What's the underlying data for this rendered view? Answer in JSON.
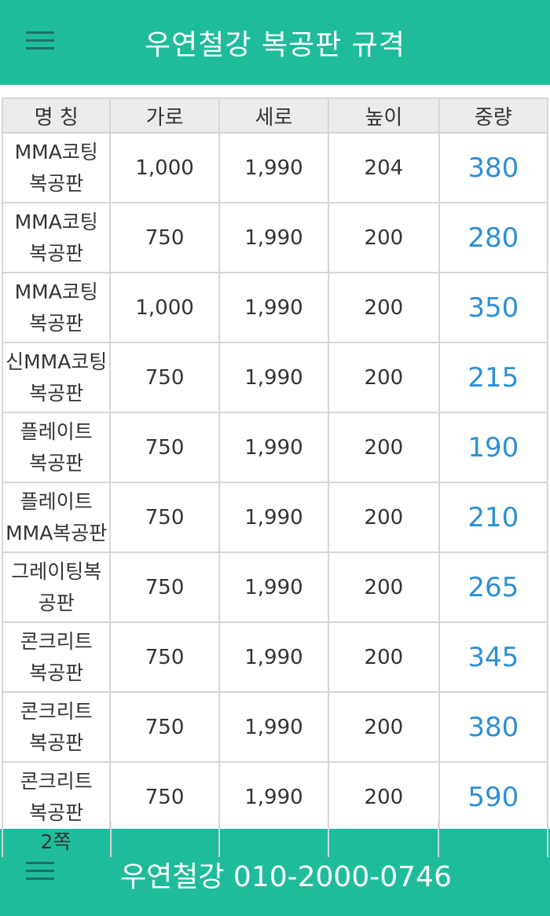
{
  "header": {
    "title": "우연철강 복공판 규격",
    "menu_icon": "hamburger-menu-icon"
  },
  "table": {
    "columns": [
      "명 칭",
      "가로",
      "세로",
      "높이",
      "중량"
    ],
    "rows": [
      {
        "name_line1": "MMA코팅",
        "name_line2": "복공판",
        "width": "1,000",
        "length": "1,990",
        "height": "204",
        "weight": "380"
      },
      {
        "name_line1": "MMA코팅",
        "name_line2": "복공판",
        "width": "750",
        "length": "1,990",
        "height": "200",
        "weight": "280"
      },
      {
        "name_line1": "MMA코팅",
        "name_line2": "복공판",
        "width": "1,000",
        "length": "1,990",
        "height": "200",
        "weight": "350"
      },
      {
        "name_line1": "신MMA코팅",
        "name_line2": "복공판",
        "width": "750",
        "length": "1,990",
        "height": "200",
        "weight": "215"
      },
      {
        "name_line1": "플레이트",
        "name_line2": "복공판",
        "width": "750",
        "length": "1,990",
        "height": "200",
        "weight": "190"
      },
      {
        "name_line1": "플레이트",
        "name_line2": "MMA복공판",
        "width": "750",
        "length": "1,990",
        "height": "200",
        "weight": "210"
      },
      {
        "name_line1": "그레이팅복",
        "name_line2": "공판",
        "width": "750",
        "length": "1,990",
        "height": "200",
        "weight": "265"
      },
      {
        "name_line1": "콘크리트",
        "name_line2": "복공판",
        "width": "750",
        "length": "1,990",
        "height": "200",
        "weight": "345"
      },
      {
        "name_line1": "콘크리트",
        "name_line2": "복공판",
        "width": "750",
        "length": "1,990",
        "height": "200",
        "weight": "380"
      },
      {
        "name_line1": "콘크리트",
        "name_line2": "복공판",
        "width": "750",
        "length": "1,990",
        "height": "200",
        "weight": "590"
      }
    ],
    "page_label": "2쪽"
  },
  "footer": {
    "contact": "우연철강 010-2000-0746",
    "menu_icon": "hamburger-menu-icon"
  },
  "colors": {
    "accent": "#1fbc9c",
    "weight_text": "#2d8fd5",
    "header_bg": "#ececec"
  }
}
